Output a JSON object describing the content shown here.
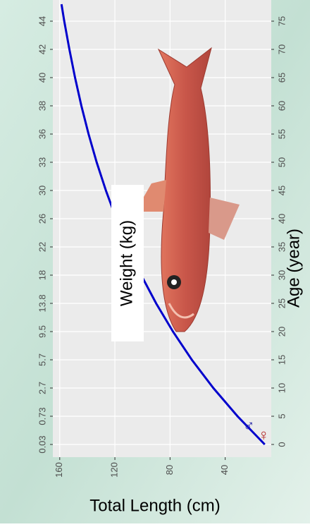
{
  "chart_data": {
    "type": "line",
    "x_label": "Age (year)",
    "y_label": "Total Length (cm)",
    "x2_label": "Weight (kg)",
    "x": [
      0,
      5,
      10,
      15,
      20,
      25,
      30,
      35,
      40,
      45,
      50,
      55,
      60,
      65,
      70,
      75,
      78
    ],
    "series": [
      {
        "color": "#0000cc",
        "values": [
          11.3,
          31.1,
          48.6,
          64.2,
          77.9,
          90.1,
          100.9,
          110.5,
          119.0,
          126.5,
          133.2,
          139.1,
          144.3,
          148.9,
          153.0,
          156.7,
          158.7
        ]
      }
    ],
    "xlim": [
      -2.25,
      78.75
    ],
    "ylim": [
      6.6,
      165
    ],
    "xticks": [
      0,
      5,
      10,
      15,
      20,
      25,
      30,
      35,
      40,
      45,
      50,
      55,
      60,
      65,
      70,
      75
    ],
    "yticks": [
      40,
      80,
      120,
      160
    ],
    "x2ticks": [
      {
        "value": 0,
        "label": "0.03"
      },
      {
        "value": 5,
        "label": "0.73"
      },
      {
        "value": 10,
        "label": "2.7"
      },
      {
        "value": 15,
        "label": "5.7"
      },
      {
        "value": 20,
        "label": "9.5"
      },
      {
        "value": 25,
        "label": "13.8"
      },
      {
        "value": 30,
        "label": "18"
      },
      {
        "value": 35,
        "label": "22"
      },
      {
        "value": 40,
        "label": "26"
      },
      {
        "value": 45,
        "label": "30"
      },
      {
        "value": 50,
        "label": "33"
      },
      {
        "value": 55,
        "label": "36"
      },
      {
        "value": 60,
        "label": "38"
      },
      {
        "value": 65,
        "label": "40"
      },
      {
        "value": 70,
        "label": "42"
      },
      {
        "value": 75,
        "label": "44"
      }
    ],
    "annotations": [
      "♂",
      "♀"
    ],
    "grid": true
  }
}
